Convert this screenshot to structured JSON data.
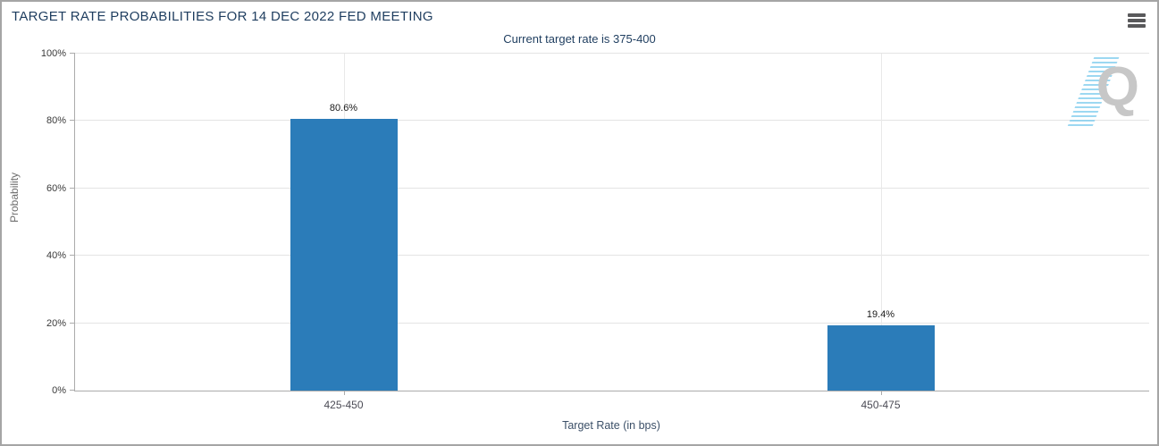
{
  "header": {
    "title": "TARGET RATE PROBABILITIES FOR 14 DEC 2022 FED MEETING",
    "subtitle": "Current target rate is 375-400",
    "menu_icon": "hamburger-icon"
  },
  "watermark": {
    "letter": "Q"
  },
  "colors": {
    "bar": "#2b7cb9",
    "title_text": "#1e3d5f",
    "watermark_dashes": "#84ceee",
    "watermark_letter": "#c7c7c7"
  },
  "chart_data": {
    "type": "bar",
    "title": "TARGET RATE PROBABILITIES FOR 14 DEC 2022 FED MEETING",
    "subtitle": "Current target rate is 375-400",
    "categories": [
      "425-450",
      "450-475"
    ],
    "values": [
      80.6,
      19.4
    ],
    "value_labels": [
      "80.6%",
      "19.4%"
    ],
    "xlabel": "Target Rate (in bps)",
    "ylabel": "Probability",
    "ylim": [
      0,
      100
    ],
    "yticks": [
      0,
      20,
      40,
      60,
      80,
      100
    ],
    "ytick_labels": [
      "0%",
      "20%",
      "40%",
      "60%",
      "80%",
      "100%"
    ],
    "bar_color": "#2b7cb9",
    "grid": true,
    "legend": false
  }
}
